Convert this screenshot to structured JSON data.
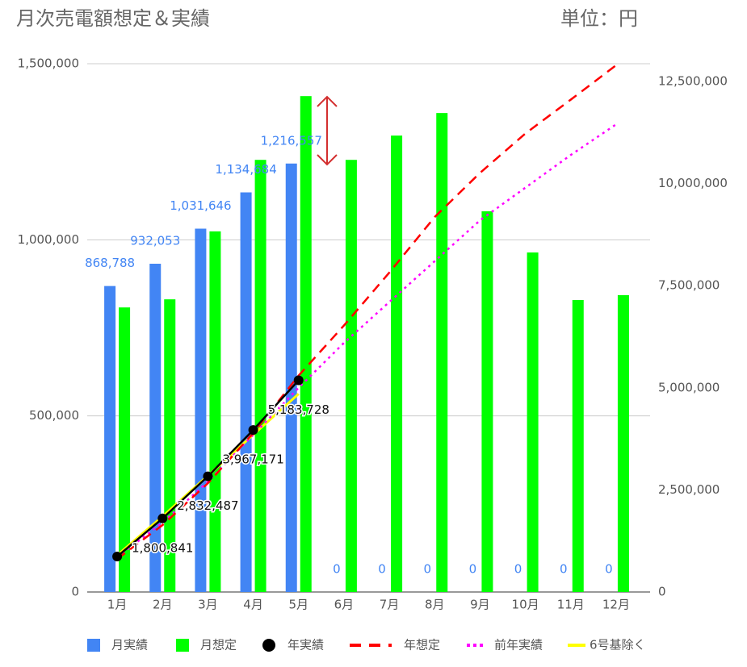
{
  "chart_data": {
    "type": "bar",
    "title": "月次売電額想定＆実績",
    "unit": "単位：円",
    "categories": [
      "1月",
      "2月",
      "3月",
      "4月",
      "5月",
      "6月",
      "7月",
      "8月",
      "9月",
      "10月",
      "11月",
      "12月"
    ],
    "ylim": [
      0,
      1500000
    ],
    "yticks": [
      0,
      {
        "value": 500000,
        "label": "500,000"
      },
      {
        "value": 1000000,
        "label": "1,000,000"
      },
      {
        "value": 1500000,
        "label": "1,500,000"
      }
    ],
    "y2lim": [
      0,
      12935000
    ],
    "y2ticks": [
      0,
      {
        "value": 2500000,
        "label": "2,500,000"
      },
      {
        "value": 5000000,
        "label": "5,000,000"
      },
      {
        "value": 7500000,
        "label": "7,500,000"
      },
      {
        "value": 10000000,
        "label": "10,000,000"
      },
      {
        "value": 12500000,
        "label": "12,500,000"
      }
    ],
    "grid": true,
    "legend": "bottom",
    "series": [
      {
        "name": "月実績",
        "type": "bar",
        "color": "#4285f4",
        "values": [
          868788,
          932053,
          1031646,
          1134684,
          1216557,
          0,
          0,
          0,
          0,
          0,
          0,
          0
        ],
        "value_labels": [
          "868,788",
          "932,053",
          "1,031,646",
          "1,134,684",
          "1,216,557",
          "0",
          "0",
          "0",
          "0",
          "0",
          "0",
          "0"
        ]
      },
      {
        "name": "月想定",
        "type": "bar",
        "color": "#00ff00",
        "values": [
          808000,
          831000,
          1024000,
          1227000,
          1408000,
          1227000,
          1296000,
          1360000,
          1081000,
          964000,
          829000,
          843000
        ]
      },
      {
        "name": "年実績",
        "type": "line",
        "axis": "y2",
        "color": "#000000",
        "style": "solid",
        "marker": true,
        "values": [
          868788,
          1800841,
          2832487,
          3967171,
          5183728,
          null,
          null,
          null,
          null,
          null,
          null,
          null
        ],
        "value_labels": [
          null,
          "1,800,841",
          "2,832,487",
          "3,967,171",
          "5,183,728",
          null,
          null,
          null,
          null,
          null,
          null,
          null
        ]
      },
      {
        "name": "年想定",
        "type": "line",
        "axis": "y2",
        "color": "#ff0000",
        "style": "dashed",
        "values": [
          808000,
          1639000,
          2663000,
          3890000,
          5298000,
          6525000,
          7821000,
          9181000,
          10262000,
          11226000,
          12055000,
          12898000
        ]
      },
      {
        "name": "前年実績",
        "type": "line",
        "axis": "y2",
        "color": "#ff00ff",
        "style": "dotted",
        "values": [
          850000,
          1700000,
          2700000,
          3850000,
          5000000,
          6100000,
          7100000,
          8100000,
          9100000,
          9900000,
          10700000,
          11450000
        ]
      },
      {
        "name": "6号基除く",
        "type": "line",
        "axis": "y2",
        "color": "#ffff00",
        "style": "solid",
        "values": [
          900000,
          1850000,
          2850000,
          3850000,
          4850000,
          null,
          null,
          null,
          null,
          null,
          null,
          null
        ]
      }
    ]
  }
}
